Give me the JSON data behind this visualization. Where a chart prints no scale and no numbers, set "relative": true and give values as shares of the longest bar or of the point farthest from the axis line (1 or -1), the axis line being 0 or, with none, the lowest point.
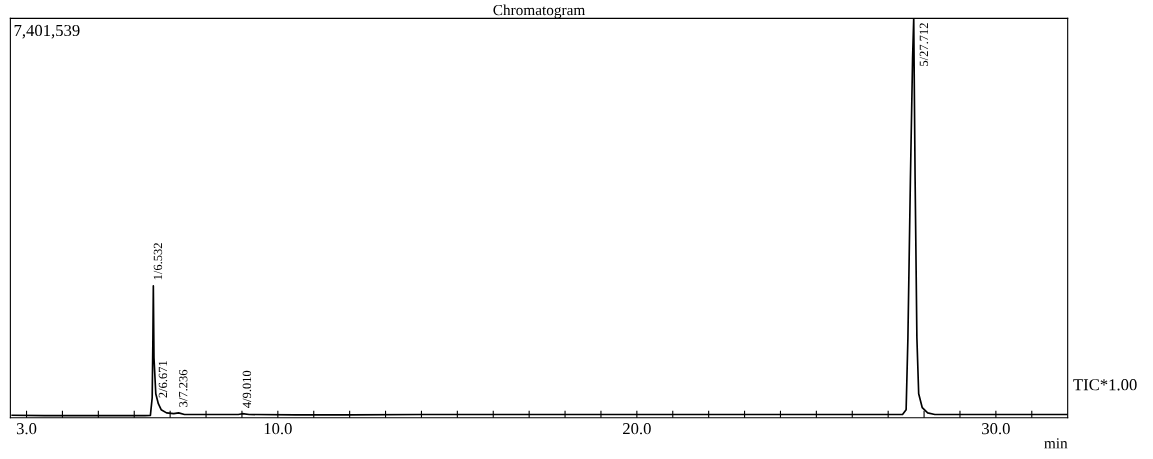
{
  "chart_data": {
    "type": "line",
    "title": "Chromatogram",
    "xlabel": "min",
    "relative": true,
    "xlim": [
      2.55,
      32.0
    ],
    "xticks": [
      {
        "value": 3,
        "label": "3.0"
      },
      {
        "value": 4,
        "label": null
      },
      {
        "value": 5,
        "label": null
      },
      {
        "value": 6,
        "label": null
      },
      {
        "value": 7,
        "label": null
      },
      {
        "value": 8,
        "label": null
      },
      {
        "value": 9,
        "label": null
      },
      {
        "value": 10,
        "label": "10.0"
      },
      {
        "value": 11,
        "label": null
      },
      {
        "value": 12,
        "label": null
      },
      {
        "value": 13,
        "label": null
      },
      {
        "value": 14,
        "label": null
      },
      {
        "value": 15,
        "label": null
      },
      {
        "value": 16,
        "label": null
      },
      {
        "value": 17,
        "label": null
      },
      {
        "value": 18,
        "label": null
      },
      {
        "value": 19,
        "label": null
      },
      {
        "value": 20,
        "label": "20.0"
      },
      {
        "value": 21,
        "label": null
      },
      {
        "value": 22,
        "label": null
      },
      {
        "value": 23,
        "label": null
      },
      {
        "value": 24,
        "label": null
      },
      {
        "value": 25,
        "label": null
      },
      {
        "value": 26,
        "label": null
      },
      {
        "value": 27,
        "label": null
      },
      {
        "value": 28,
        "label": null
      },
      {
        "value": 29,
        "label": null
      },
      {
        "value": 30,
        "label": "30.0"
      },
      {
        "value": 31,
        "label": null
      }
    ],
    "tick_labels": "x",
    "grid": false,
    "legend": false,
    "marker": "none",
    "line_style": "solid",
    "series": [
      {
        "color": "#000000",
        "x": [
          2.6,
          3.5,
          4.5,
          5.5,
          6.3,
          6.45,
          6.5,
          6.52,
          6.532,
          6.55,
          6.6,
          6.671,
          6.75,
          6.9,
          7.1,
          7.236,
          7.4,
          8.0,
          8.9,
          9.01,
          9.2,
          10.5,
          12.0,
          14.0,
          16.0,
          18.0,
          20.0,
          22.0,
          24.0,
          26.0,
          27.0,
          27.4,
          27.5,
          27.55,
          27.62,
          27.68,
          27.712,
          27.75,
          27.8,
          27.85,
          27.95,
          28.1,
          28.3,
          29.0,
          30.0,
          31.0,
          32.0
        ],
        "values": [
          0.006,
          0.005,
          0.005,
          0.005,
          0.005,
          0.006,
          0.05,
          0.2,
          0.33,
          0.15,
          0.06,
          0.035,
          0.02,
          0.012,
          0.01,
          0.012,
          0.008,
          0.008,
          0.008,
          0.01,
          0.008,
          0.007,
          0.007,
          0.008,
          0.008,
          0.008,
          0.008,
          0.008,
          0.008,
          0.008,
          0.008,
          0.008,
          0.02,
          0.2,
          0.6,
          0.9,
          1,
          0.6,
          0.2,
          0.06,
          0.025,
          0.012,
          0.008,
          0.008,
          0.008,
          0.008,
          0.008
        ]
      }
    ],
    "annotations": [
      {
        "text": "1/6.532",
        "x": 6.532,
        "y": 0.33
      },
      {
        "text": "2/6.671",
        "x": 6.671,
        "y": 0.035
      },
      {
        "text": "3/7.236",
        "x": 7.236,
        "y": 0.012
      },
      {
        "text": "4/9.010",
        "x": 9.01,
        "y": 0.01
      },
      {
        "text": "5/27.712",
        "x": 27.712,
        "y": 1
      },
      "7,401,539",
      "TIC*1.00"
    ]
  }
}
